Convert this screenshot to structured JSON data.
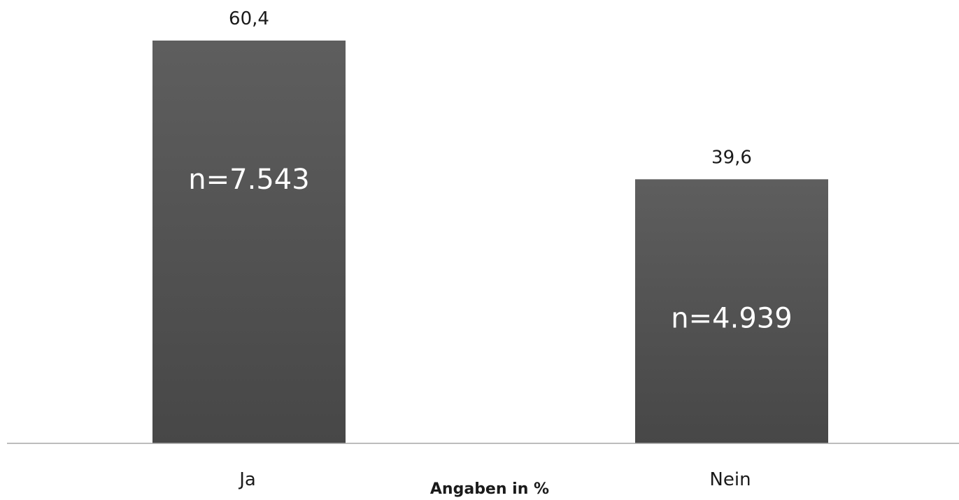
{
  "chart_data": {
    "type": "bar",
    "categories": [
      "Ja",
      "Nein"
    ],
    "values": [
      60.4,
      39.6
    ],
    "value_labels": [
      "60,4",
      "39,6"
    ],
    "n_labels": [
      "n=7.543",
      "n=4.939"
    ],
    "xlabel": "Angaben in %",
    "ylim": [
      0,
      60.4
    ],
    "grid": false,
    "legend": "none",
    "bar_color_top": "#5e5e5e",
    "bar_color_bottom": "#474747",
    "axis_color": "#a6a6a6"
  }
}
